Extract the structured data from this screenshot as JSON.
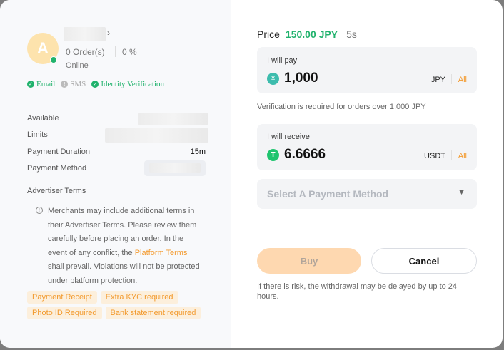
{
  "merchant": {
    "avatar_letter": "A",
    "orders": "0 Order(s)",
    "completion": "0 %",
    "status": "Online",
    "verifications": [
      {
        "label": "Email",
        "verified": true
      },
      {
        "label": "SMS",
        "verified": false
      },
      {
        "label": "Identity Verification",
        "verified": true
      }
    ]
  },
  "details": {
    "available_label": "Available",
    "limits_label": "Limits",
    "duration_label": "Payment Duration",
    "duration_value": "15m",
    "method_label": "Payment Method"
  },
  "terms": {
    "title": "Advertiser Terms",
    "text_before": "Merchants may include additional terms in their Advertiser Terms. Please review them carefully before placing an order. In the event of any conflict, the ",
    "link": "Platform Terms",
    "text_after": " shall prevail. Violations will not be protected under platform protection.",
    "tags": [
      "Payment Receipt",
      "Extra KYC required",
      "Photo ID Required",
      "Bank statement required"
    ]
  },
  "price": {
    "label": "Price",
    "value": "150.00 JPY",
    "countdown": "5s"
  },
  "pay": {
    "label": "I will pay",
    "amount": "1,000",
    "currency": "JPY",
    "all": "All"
  },
  "verification_note": "Verification is required for orders over 1,000 JPY",
  "receive": {
    "label": "I will receive",
    "amount": "6.6666",
    "currency": "USDT",
    "all": "All"
  },
  "payment_select": {
    "placeholder": "Select A Payment Method"
  },
  "buttons": {
    "buy": "Buy",
    "cancel": "Cancel"
  },
  "risk_note": "If there is risk, the withdrawal may be delayed by up to 24 hours.",
  "colors": {
    "green": "#20b26c",
    "orange": "#f39a2e",
    "buy_disabled": "#fed8b0"
  }
}
